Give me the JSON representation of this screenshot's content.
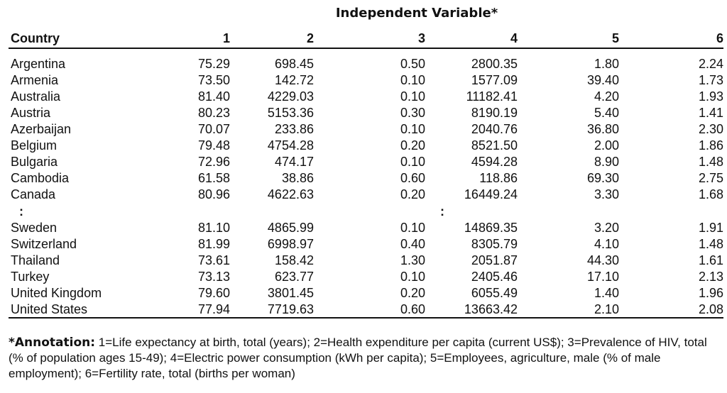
{
  "title": "Independent Variable*",
  "headers": [
    "Country",
    "1",
    "2",
    "3",
    "4",
    "5",
    "6"
  ],
  "rows_top": [
    [
      "Argentina",
      "75.29",
      "698.45",
      "0.50",
      "2800.35",
      "1.80",
      "2.24"
    ],
    [
      "Armenia",
      "73.50",
      "142.72",
      "0.10",
      "1577.09",
      "39.40",
      "1.73"
    ],
    [
      "Australia",
      "81.40",
      "4229.03",
      "0.10",
      "11182.41",
      "4.20",
      "1.93"
    ],
    [
      "Austria",
      "80.23",
      "5153.36",
      "0.30",
      "8190.19",
      "5.40",
      "1.41"
    ],
    [
      "Azerbaijan",
      "70.07",
      "233.86",
      "0.10",
      "2040.76",
      "36.80",
      "2.30"
    ],
    [
      "Belgium",
      "79.48",
      "4754.28",
      "0.20",
      "8521.50",
      "2.00",
      "1.86"
    ],
    [
      "Bulgaria",
      "72.96",
      "474.17",
      "0.10",
      "4594.28",
      "8.90",
      "1.48"
    ],
    [
      "Cambodia",
      "61.58",
      "38.86",
      "0.60",
      "118.86",
      "69.30",
      "2.75"
    ],
    [
      "Canada",
      "80.96",
      "4622.63",
      "0.20",
      "16449.24",
      "3.30",
      "1.68"
    ]
  ],
  "ellipsis": ":",
  "rows_bottom": [
    [
      "Sweden",
      "81.10",
      "4865.99",
      "0.10",
      "14869.35",
      "3.20",
      "1.91"
    ],
    [
      "Switzerland",
      "81.99",
      "6998.97",
      "0.40",
      "8305.79",
      "4.10",
      "1.48"
    ],
    [
      "Thailand",
      "73.61",
      "158.42",
      "1.30",
      "2051.87",
      "44.30",
      "1.61"
    ],
    [
      "Turkey",
      "73.13",
      "623.77",
      "0.10",
      "2405.46",
      "17.10",
      "2.13"
    ],
    [
      "United Kingdom",
      "79.60",
      "3801.45",
      "0.20",
      "6055.49",
      "1.40",
      "1.96"
    ],
    [
      "United States",
      "77.94",
      "7719.63",
      "0.60",
      "13663.42",
      "2.10",
      "2.08"
    ]
  ],
  "annotation": {
    "label": "*Annotation:",
    "text": " 1=Life expectancy at birth, total (years); 2=Health expenditure per capita (current US$); 3=Prevalence of HIV, total (% of population ages 15-49); 4=Electric power consumption (kWh per capita); 5=Employees, agriculture, male (% of male employment); 6=Fertility rate, total (births per woman)"
  }
}
